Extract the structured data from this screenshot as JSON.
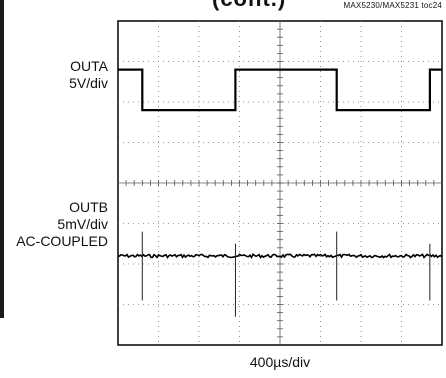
{
  "header": {
    "title_fragment": "(cont.)",
    "figure_id": "MAX5230/MAX5231 toc24"
  },
  "channels": [
    {
      "name": "OUTA",
      "scale": "5V/div",
      "coupling": ""
    },
    {
      "name": "OUTB",
      "scale": "5mV/div",
      "coupling": "AC-COUPLED"
    }
  ],
  "timebase": "400µs/div",
  "chart_data": {
    "type": "line",
    "title": "",
    "xlabel": "400µs/div",
    "ylabel": "",
    "grid": true,
    "divisions": {
      "x": 8,
      "y": 8
    },
    "xlim": [
      0,
      8
    ],
    "ylim": [
      0,
      8
    ],
    "series": [
      {
        "name": "OUTA",
        "kind": "square",
        "x": [
          0,
          0.6,
          0.6,
          2.9,
          2.9,
          5.4,
          5.4,
          7.7,
          7.7,
          8
        ],
        "y": [
          6.8,
          6.8,
          5.8,
          5.8,
          6.8,
          6.8,
          5.8,
          5.8,
          6.8,
          6.8
        ]
      },
      {
        "name": "OUTB",
        "kind": "noisy-baseline",
        "baseline_div": 2.2,
        "spikes": [
          {
            "x": 0.6,
            "up": 0.6,
            "down": 1.1
          },
          {
            "x": 2.9,
            "up": 0.3,
            "down": 1.5
          },
          {
            "x": 5.4,
            "up": 0.6,
            "down": 1.1
          },
          {
            "x": 7.7,
            "up": 0.3,
            "down": 1.1
          }
        ]
      }
    ]
  }
}
